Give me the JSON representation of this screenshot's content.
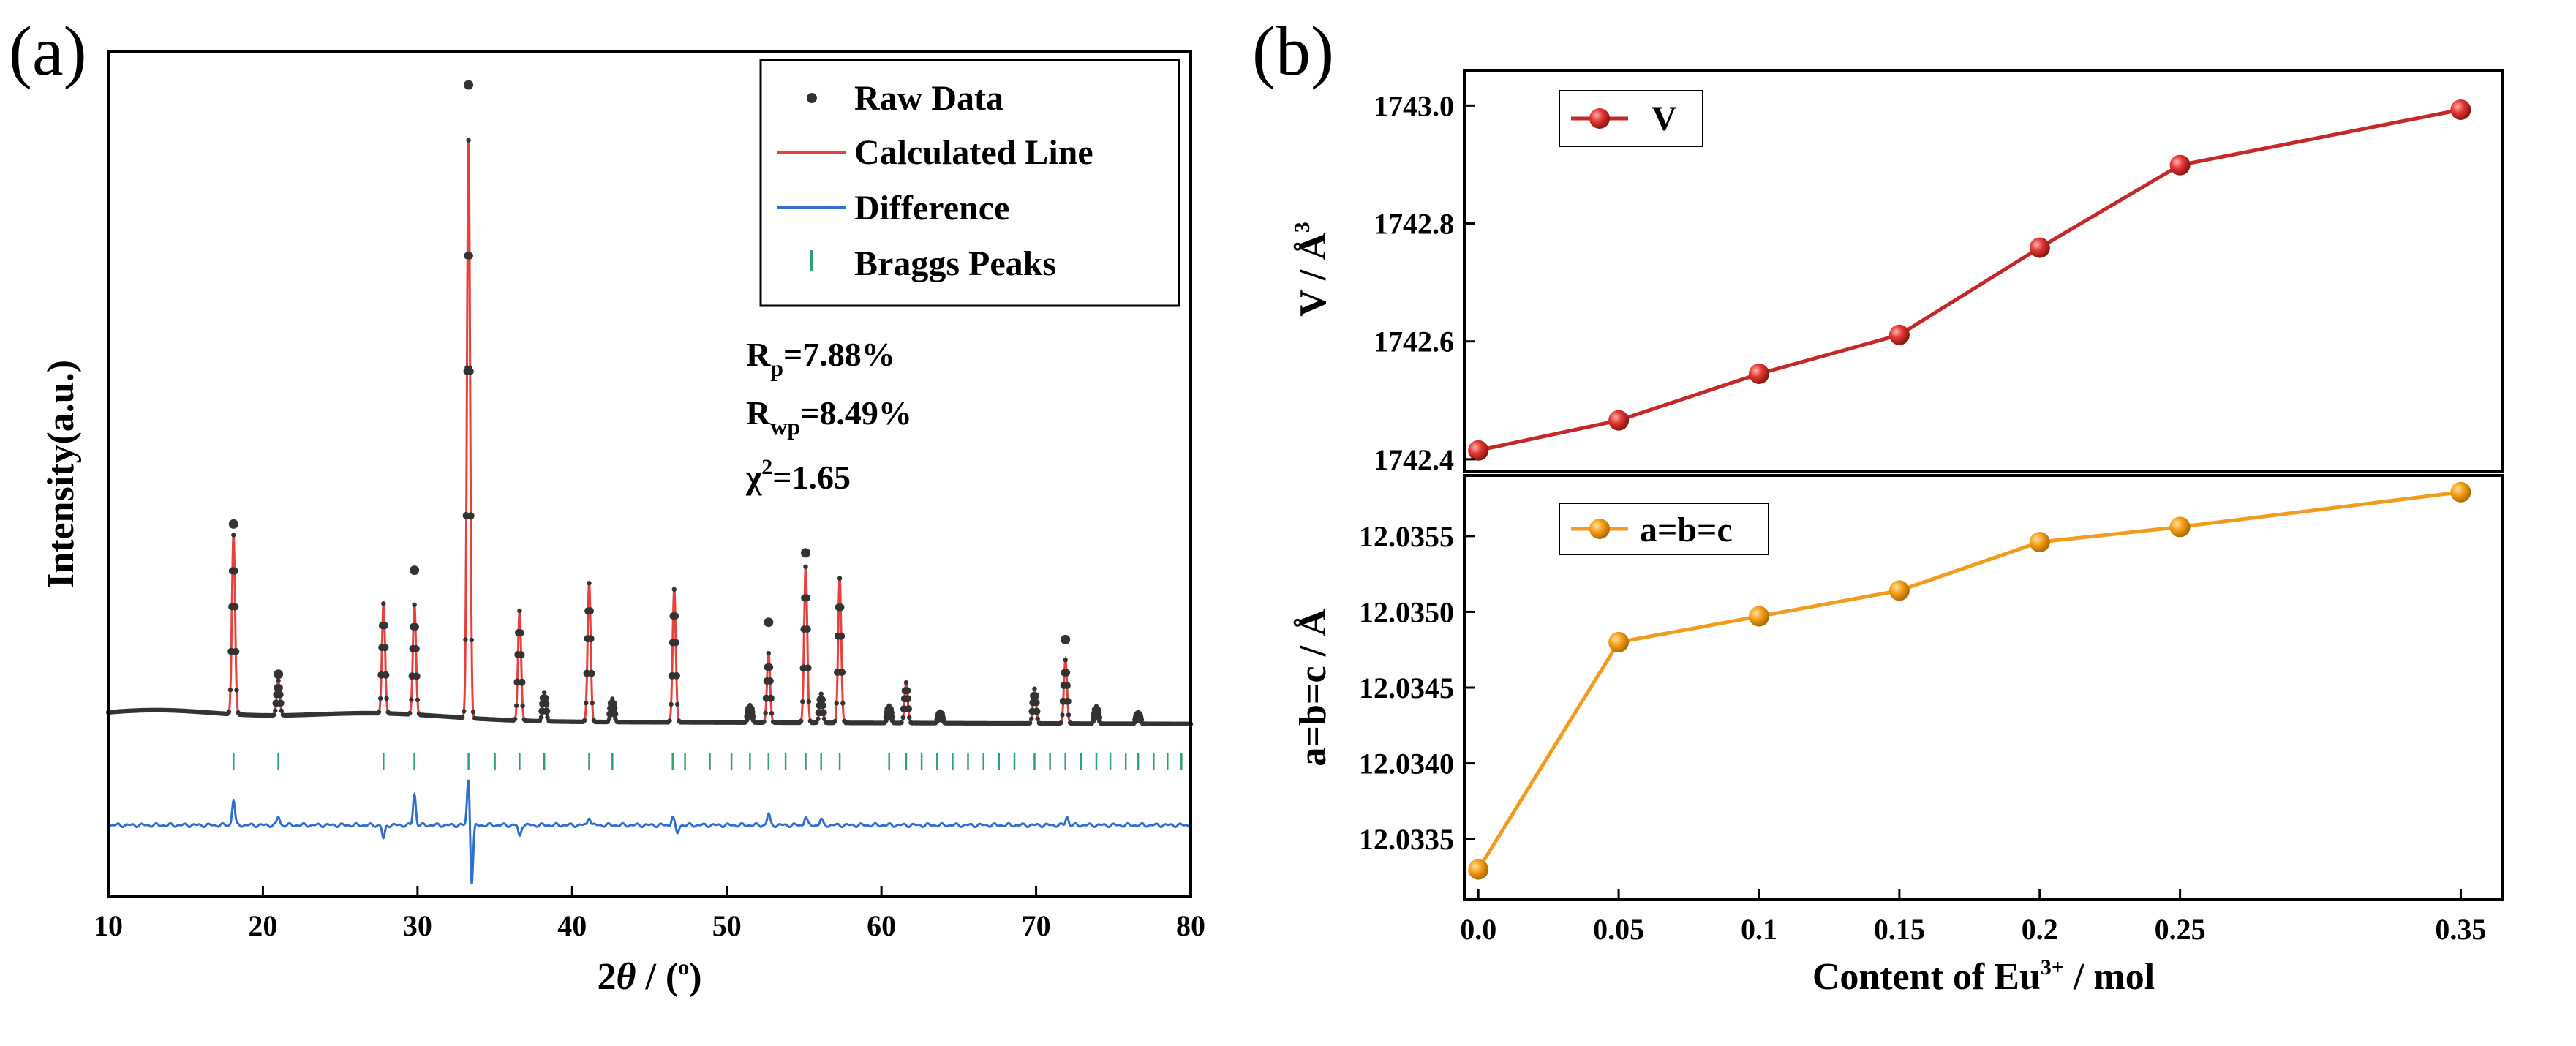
{
  "colors": {
    "raw": "#333333",
    "calc": "#e8403a",
    "diff": "#2f6fcf",
    "bragg": "#2fa36b",
    "vline": "#c62828",
    "vfill": "#e53935",
    "abcline": "#f29b1c",
    "abcfill": "#f7a21b"
  },
  "chart_data": [
    {
      "id": "a",
      "type": "line",
      "panel_label": "(a)",
      "title": "",
      "xlabel": "2θ / (°)",
      "xlabel_parts": {
        "pre": "2",
        "theta": "θ",
        "mid": " / (",
        "deg": "o",
        "post": ")"
      },
      "ylabel": "Intensity(a.u.)",
      "xlim": [
        10,
        80
      ],
      "ylim": [
        -0.2,
        1.1
      ],
      "xticks": [
        10,
        20,
        30,
        40,
        50,
        60,
        70,
        80
      ],
      "legend": {
        "position": "top-right",
        "entries": [
          "Raw Data",
          "Calculated Line",
          "Difference",
          "Braggs Peaks"
        ]
      },
      "stats": {
        "rp_label": "R",
        "rp_sub": "p",
        "rp_value": "=7.88%",
        "rwp_label": "R",
        "rwp_sub": "wp",
        "rwp_value": "=8.49%",
        "chi_label": "χ",
        "chi_sup": "2",
        "chi_value": "=1.65"
      },
      "peaks": [
        {
          "pos": 18.1,
          "height": 0.31,
          "raw_top": 0.34
        },
        {
          "pos": 21.0,
          "height": 0.06,
          "raw_top": 0.08
        },
        {
          "pos": 27.8,
          "height": 0.19,
          "raw_top": 0.19
        },
        {
          "pos": 29.8,
          "height": 0.19,
          "raw_top": 0.26
        },
        {
          "pos": 33.3,
          "height": 1.0,
          "raw_top": 1.1
        },
        {
          "pos": 36.6,
          "height": 0.19,
          "raw_top": 0.19
        },
        {
          "pos": 38.2,
          "height": 0.05,
          "raw_top": 0.05
        },
        {
          "pos": 41.1,
          "height": 0.24,
          "raw_top": 0.24
        },
        {
          "pos": 42.6,
          "height": 0.04,
          "raw_top": 0.04
        },
        {
          "pos": 46.6,
          "height": 0.23,
          "raw_top": 0.23
        },
        {
          "pos": 51.5,
          "height": 0.03,
          "raw_top": 0.03
        },
        {
          "pos": 52.7,
          "height": 0.12,
          "raw_top": 0.17
        },
        {
          "pos": 55.1,
          "height": 0.27,
          "raw_top": 0.29
        },
        {
          "pos": 56.1,
          "height": 0.05,
          "raw_top": 0.05
        },
        {
          "pos": 57.3,
          "height": 0.25,
          "raw_top": 0.25
        },
        {
          "pos": 60.5,
          "height": 0.03,
          "raw_top": 0.03
        },
        {
          "pos": 61.6,
          "height": 0.07,
          "raw_top": 0.07
        },
        {
          "pos": 63.8,
          "height": 0.02,
          "raw_top": 0.02
        },
        {
          "pos": 69.9,
          "height": 0.06,
          "raw_top": 0.06
        },
        {
          "pos": 71.9,
          "height": 0.11,
          "raw_top": 0.14
        },
        {
          "pos": 73.9,
          "height": 0.03,
          "raw_top": 0.03
        },
        {
          "pos": 76.6,
          "height": 0.02,
          "raw_top": 0.02
        }
      ],
      "bragg_positions": [
        18.1,
        21.0,
        27.8,
        29.8,
        33.3,
        35.0,
        36.6,
        38.2,
        41.1,
        42.6,
        46.5,
        47.3,
        48.9,
        50.3,
        51.5,
        52.7,
        53.8,
        55.1,
        56.1,
        57.3,
        60.5,
        61.6,
        62.6,
        63.6,
        64.6,
        65.6,
        66.6,
        67.6,
        68.6,
        69.9,
        70.9,
        71.9,
        72.9,
        73.9,
        74.8,
        75.8,
        76.6,
        77.6,
        78.5,
        79.4
      ],
      "difference": [
        {
          "pos": 18.1,
          "value": 0.09
        },
        {
          "pos": 21.0,
          "value": 0.03
        },
        {
          "pos": 27.8,
          "value": -0.05
        },
        {
          "pos": 29.8,
          "value": 0.11
        },
        {
          "pos": 33.3,
          "value": 0.18
        },
        {
          "pos": 33.5,
          "value": -0.22
        },
        {
          "pos": 36.6,
          "value": -0.04
        },
        {
          "pos": 41.1,
          "value": 0.03
        },
        {
          "pos": 46.5,
          "value": 0.03
        },
        {
          "pos": 46.8,
          "value": -0.03
        },
        {
          "pos": 52.7,
          "value": 0.04
        },
        {
          "pos": 55.1,
          "value": 0.03
        },
        {
          "pos": 56.1,
          "value": 0.02
        },
        {
          "pos": 72.0,
          "value": 0.03
        }
      ]
    },
    {
      "id": "b-top",
      "type": "line",
      "panel_label": "(b)",
      "title": "",
      "xlabel": "Content of Eu³⁺ / mol",
      "xlabel_parts": {
        "pre": "Content of Eu",
        "sup": "3+",
        "post": " / mol"
      },
      "ylabel": "V / Å³",
      "ylabel_parts": {
        "pre": "V / Å",
        "sup": "3"
      },
      "xlim": [
        -0.005,
        0.365
      ],
      "ylim": [
        1742.38,
        1743.06
      ],
      "yticks": [
        1742.4,
        1742.6,
        1742.8,
        1743.0
      ],
      "ytick_labels": [
        "1742.4",
        "1742.6",
        "1742.8",
        "1743.0"
      ],
      "legend": {
        "position": "top-left",
        "entries": [
          "V"
        ]
      },
      "x": [
        0.0,
        0.05,
        0.1,
        0.15,
        0.2,
        0.25,
        0.35
      ],
      "values": [
        1742.415,
        1742.466,
        1742.545,
        1742.611,
        1742.759,
        1742.899,
        1742.993
      ]
    },
    {
      "id": "b-bottom",
      "type": "line",
      "title": "",
      "xlabel": "Content of Eu³⁺ / mol",
      "ylabel": "a=b=c / Å",
      "xlim": [
        -0.005,
        0.365
      ],
      "ylim": [
        12.0331,
        12.0359
      ],
      "xticks": [
        0.0,
        0.05,
        0.1,
        0.15,
        0.2,
        0.25,
        0.35
      ],
      "xtick_labels": [
        "0.0",
        "0.05",
        "0.1",
        "0.15",
        "0.2",
        "0.25",
        "0.35"
      ],
      "yticks": [
        12.0335,
        12.034,
        12.0345,
        12.035,
        12.0355
      ],
      "ytick_labels": [
        "12.0335",
        "12.0340",
        "12.0345",
        "12.0350",
        "12.0355"
      ],
      "legend": {
        "position": "top-left",
        "entries": [
          "a=b=c"
        ]
      },
      "x": [
        0.0,
        0.05,
        0.1,
        0.15,
        0.2,
        0.25,
        0.35
      ],
      "values": [
        12.0333,
        12.0348,
        12.03497,
        12.03514,
        12.03546,
        12.03556,
        12.03579
      ]
    }
  ]
}
